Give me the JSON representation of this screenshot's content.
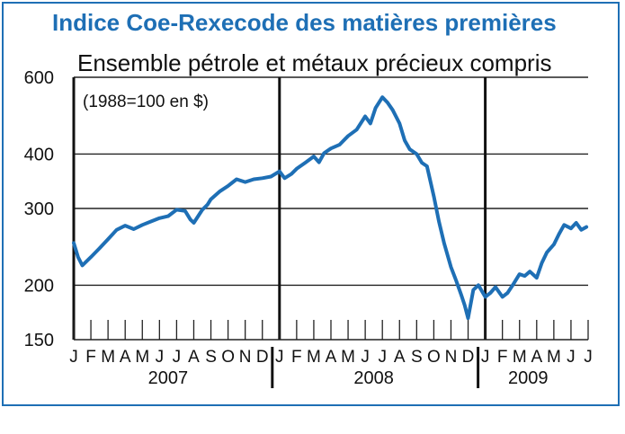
{
  "chart_data": {
    "type": "line",
    "title": "Indice Coe-Rexecode des matières premières",
    "subtitle": "Ensemble pétrole et métaux précieux compris",
    "note": "(1988=100 en $)",
    "yscale": "log",
    "ylim": [
      150,
      600
    ],
    "yticks": [
      150,
      200,
      300,
      400,
      600
    ],
    "months": [
      "J",
      "F",
      "M",
      "A",
      "M",
      "J",
      "J",
      "A",
      "S",
      "O",
      "N",
      "D",
      "J",
      "F",
      "M",
      "A",
      "M",
      "J",
      "J",
      "A",
      "S",
      "O",
      "N",
      "D",
      "J",
      "F",
      "M",
      "A",
      "M",
      "J",
      "J"
    ],
    "years": [
      "2007",
      "2008",
      "2009"
    ],
    "series": [
      {
        "name": "Indice Coe-Rexecode",
        "color": "#1e6fb5",
        "x": [
          0,
          0.25,
          0.5,
          1,
          1.5,
          2,
          2.5,
          3,
          3.5,
          4,
          4.5,
          5,
          5.5,
          6,
          6.5,
          6.8,
          7,
          7.5,
          7.8,
          8,
          8.5,
          9,
          9.5,
          10,
          10.5,
          11,
          11.5,
          12,
          12.3,
          12.7,
          13,
          13.5,
          14,
          14.3,
          14.6,
          15,
          15.5,
          16,
          16.5,
          17,
          17.3,
          17.6,
          18,
          18.3,
          18.6,
          19,
          19.3,
          19.6,
          20,
          20.3,
          20.6,
          21,
          21.3,
          21.6,
          22,
          22.3,
          22.6,
          22.8,
          23,
          23.3,
          23.6,
          24,
          24.3,
          24.6,
          25,
          25.3,
          25.6,
          26,
          26.3,
          26.6,
          27,
          27.3,
          27.6,
          28,
          28.3,
          28.6,
          29,
          29.3,
          29.6,
          29.9
        ],
        "values": [
          250,
          232,
          222,
          232,
          243,
          255,
          268,
          274,
          269,
          275,
          280,
          285,
          288,
          298,
          296,
          283,
          278,
          298,
          306,
          315,
          328,
          338,
          350,
          345,
          350,
          352,
          355,
          365,
          352,
          360,
          370,
          382,
          395,
          383,
          402,
          412,
          420,
          440,
          455,
          488,
          470,
          510,
          540,
          525,
          505,
          470,
          430,
          410,
          400,
          382,
          375,
          320,
          280,
          250,
          220,
          205,
          190,
          180,
          168,
          195,
          200,
          188,
          192,
          198,
          188,
          192,
          200,
          212,
          210,
          215,
          208,
          225,
          238,
          248,
          262,
          275,
          270,
          278,
          268,
          272
        ]
      }
    ]
  }
}
